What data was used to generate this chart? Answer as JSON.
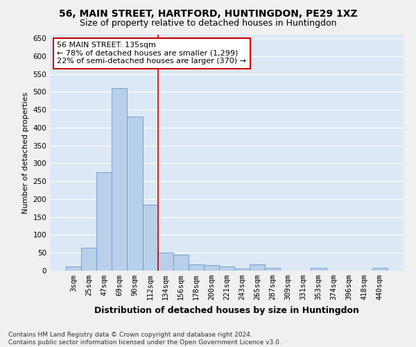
{
  "title": "56, MAIN STREET, HARTFORD, HUNTINGDON, PE29 1XZ",
  "subtitle": "Size of property relative to detached houses in Huntingdon",
  "xlabel": "Distribution of detached houses by size in Huntingdon",
  "ylabel": "Number of detached properties",
  "categories": [
    "3sqm",
    "25sqm",
    "47sqm",
    "69sqm",
    "90sqm",
    "112sqm",
    "134sqm",
    "156sqm",
    "178sqm",
    "200sqm",
    "221sqm",
    "243sqm",
    "265sqm",
    "287sqm",
    "309sqm",
    "331sqm",
    "353sqm",
    "374sqm",
    "396sqm",
    "418sqm",
    "440sqm"
  ],
  "bar_heights": [
    12,
    65,
    275,
    510,
    430,
    185,
    50,
    45,
    18,
    15,
    12,
    5,
    18,
    8,
    0,
    0,
    8,
    0,
    0,
    0,
    8
  ],
  "bar_color": "#b8d0ea",
  "bar_edge_color": "#6699cc",
  "property_line_x": 5.5,
  "annotation_text": "56 MAIN STREET: 135sqm\n← 78% of detached houses are smaller (1,299)\n22% of semi-detached houses are larger (370) →",
  "annotation_box_color": "#ffffff",
  "annotation_box_edge_color": "#cc0000",
  "ylim": [
    0,
    660
  ],
  "yticks": [
    0,
    50,
    100,
    150,
    200,
    250,
    300,
    350,
    400,
    450,
    500,
    550,
    600,
    650
  ],
  "background_color": "#dce8f5",
  "grid_color": "#ffffff",
  "footer_line1": "Contains HM Land Registry data © Crown copyright and database right 2024.",
  "footer_line2": "Contains public sector information licensed under the Open Government Licence v3.0.",
  "title_fontsize": 10,
  "subtitle_fontsize": 9,
  "xlabel_fontsize": 9,
  "ylabel_fontsize": 8,
  "tick_fontsize": 7.5,
  "footer_fontsize": 6.5
}
